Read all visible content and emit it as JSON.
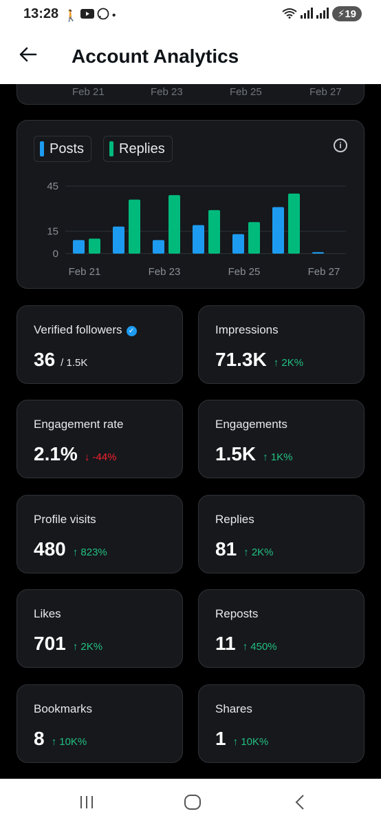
{
  "status_bar": {
    "time": "13:28",
    "battery": "19"
  },
  "header": {
    "title": "Account Analytics"
  },
  "previous_chart_axis": [
    "Feb 21",
    "Feb 23",
    "Feb 25",
    "Feb 27"
  ],
  "chart_legend": {
    "posts": "Posts",
    "replies": "Replies"
  },
  "chart_data": {
    "type": "bar",
    "categories": [
      "Feb 21",
      "Feb 22",
      "Feb 23",
      "Feb 24",
      "Feb 25",
      "Feb 26",
      "Feb 27"
    ],
    "x_tick_labels": [
      "Feb 21",
      "Feb 23",
      "Feb 25",
      "Feb 27"
    ],
    "series": [
      {
        "name": "Posts",
        "color": "#1d9bf0",
        "values": [
          9,
          18,
          9,
          19,
          13,
          31,
          1
        ]
      },
      {
        "name": "Replies",
        "color": "#00ba7c",
        "values": [
          10,
          36,
          39,
          29,
          21,
          40,
          0
        ]
      }
    ],
    "y_ticks": [
      0,
      15,
      45
    ],
    "ylim": [
      0,
      45
    ],
    "grid": true
  },
  "stats": [
    {
      "label": "Verified followers",
      "value": "36",
      "sub": "/ 1.5K",
      "verified": true
    },
    {
      "label": "Impressions",
      "value": "71.3K",
      "change": "↑ 2K%",
      "trend": "up"
    },
    {
      "label": "Engagement rate",
      "value": "2.1%",
      "change": "↓ -44%",
      "trend": "down"
    },
    {
      "label": "Engagements",
      "value": "1.5K",
      "change": "↑ 1K%",
      "trend": "up"
    },
    {
      "label": "Profile visits",
      "value": "480",
      "change": "↑ 823%",
      "trend": "up"
    },
    {
      "label": "Replies",
      "value": "81",
      "change": "↑ 2K%",
      "trend": "up"
    },
    {
      "label": "Likes",
      "value": "701",
      "change": "↑ 2K%",
      "trend": "up"
    },
    {
      "label": "Reposts",
      "value": "11",
      "change": "↑ 450%",
      "trend": "up"
    },
    {
      "label": "Bookmarks",
      "value": "8",
      "change": "↑ 10K%",
      "trend": "up"
    },
    {
      "label": "Shares",
      "value": "1",
      "change": "↑ 10K%",
      "trend": "up"
    }
  ],
  "icons": {
    "back": "arrow-left-icon",
    "info": "info-icon",
    "verified": "verified-badge-icon"
  }
}
